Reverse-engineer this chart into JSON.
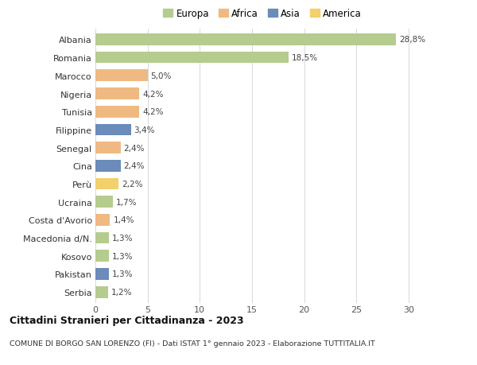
{
  "categories": [
    "Albania",
    "Romania",
    "Marocco",
    "Nigeria",
    "Tunisia",
    "Filippine",
    "Senegal",
    "Cina",
    "Perù",
    "Ucraina",
    "Costa d'Avorio",
    "Macedonia d/N.",
    "Kosovo",
    "Pakistan",
    "Serbia"
  ],
  "values": [
    28.8,
    18.5,
    5.0,
    4.2,
    4.2,
    3.4,
    2.4,
    2.4,
    2.2,
    1.7,
    1.4,
    1.3,
    1.3,
    1.3,
    1.2
  ],
  "labels": [
    "28,8%",
    "18,5%",
    "5,0%",
    "4,2%",
    "4,2%",
    "3,4%",
    "2,4%",
    "2,4%",
    "2,2%",
    "1,7%",
    "1,4%",
    "1,3%",
    "1,3%",
    "1,3%",
    "1,2%"
  ],
  "continent": [
    "Europa",
    "Europa",
    "Africa",
    "Africa",
    "Africa",
    "Asia",
    "Africa",
    "Asia",
    "America",
    "Europa",
    "Africa",
    "Europa",
    "Europa",
    "Asia",
    "Europa"
  ],
  "colors": {
    "Europa": "#b5cc8e",
    "Africa": "#f0b982",
    "Asia": "#6b8cba",
    "America": "#f2d06b"
  },
  "legend_order": [
    "Europa",
    "Africa",
    "Asia",
    "America"
  ],
  "title1": "Cittadini Stranieri per Cittadinanza - 2023",
  "title2": "COMUNE DI BORGO SAN LORENZO (FI) - Dati ISTAT 1° gennaio 2023 - Elaborazione TUTTITALIA.IT",
  "xlim": [
    0,
    32
  ],
  "xticks": [
    0,
    5,
    10,
    15,
    20,
    25,
    30
  ],
  "background_color": "#ffffff",
  "grid_color": "#d8d8d8"
}
